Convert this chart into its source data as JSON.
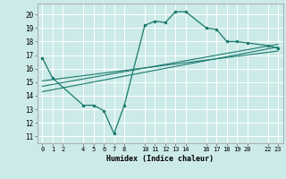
{
  "xlabel": "Humidex (Indice chaleur)",
  "bg_color": "#cceae8",
  "grid_color": "#ffffff",
  "line_color": "#1a7a6e",
  "xlim": [
    -0.5,
    23.5
  ],
  "ylim": [
    10.5,
    20.8
  ],
  "yticks": [
    11,
    12,
    13,
    14,
    15,
    16,
    17,
    18,
    19,
    20
  ],
  "xticks": [
    0,
    1,
    2,
    4,
    5,
    6,
    7,
    8,
    10,
    11,
    12,
    13,
    14,
    16,
    17,
    18,
    19,
    20,
    22,
    23
  ],
  "line1_x": [
    0,
    1,
    4,
    5,
    6,
    7,
    8,
    10,
    11,
    12,
    13,
    14,
    16,
    17,
    18,
    19,
    20,
    22,
    23
  ],
  "line1_y": [
    16.8,
    15.3,
    13.3,
    13.3,
    12.9,
    11.2,
    13.3,
    19.2,
    19.5,
    19.4,
    20.2,
    20.2,
    19.0,
    18.9,
    18.0,
    18.0,
    17.9,
    17.7,
    17.5
  ],
  "line2_x": [
    0,
    23
  ],
  "line2_y": [
    14.3,
    17.6
  ],
  "line3_x": [
    0,
    23
  ],
  "line3_y": [
    14.7,
    17.8
  ],
  "line4_x": [
    0,
    23
  ],
  "line4_y": [
    15.1,
    17.3
  ]
}
